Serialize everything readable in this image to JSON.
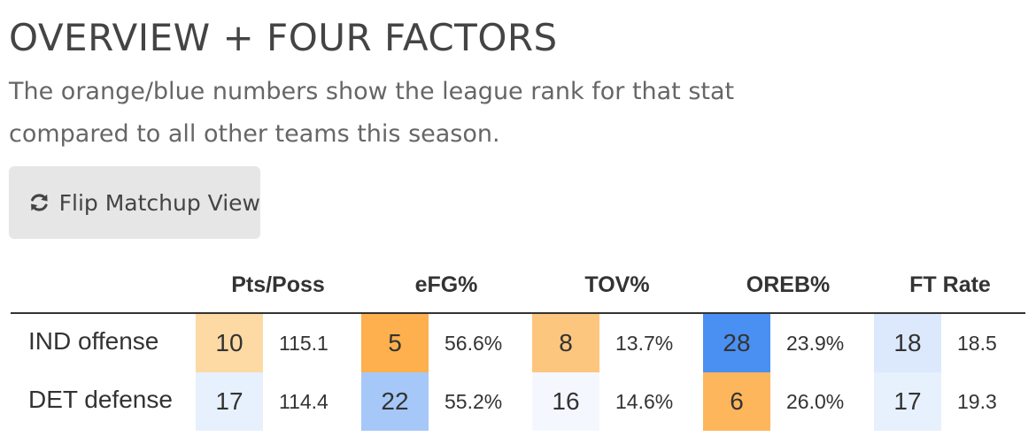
{
  "header": {
    "title": "OVERVIEW + FOUR FACTORS",
    "subtitle": "The orange/blue numbers show the league rank for that stat compared to all other teams this season."
  },
  "flip_button": {
    "label": "Flip Matchup View",
    "icon": "refresh-icon"
  },
  "table": {
    "columns": [
      "Pts/Poss",
      "eFG%",
      "TOV%",
      "OREB%",
      "FT Rate"
    ],
    "rows": [
      {
        "label": "IND offense",
        "cells": [
          {
            "rank": "10",
            "value": "115.1",
            "color": "#fdd9a4"
          },
          {
            "rank": "5",
            "value": "56.6%",
            "color": "#fdb04d"
          },
          {
            "rank": "8",
            "value": "13.7%",
            "color": "#fdc67e"
          },
          {
            "rank": "28",
            "value": "23.9%",
            "color": "#4a90f2"
          },
          {
            "rank": "18",
            "value": "18.5",
            "color": "#dce9fd"
          }
        ]
      },
      {
        "label": "DET defense",
        "cells": [
          {
            "rank": "17",
            "value": "114.4",
            "color": "#e7f0fd"
          },
          {
            "rank": "22",
            "value": "55.2%",
            "color": "#a6c8f8"
          },
          {
            "rank": "16",
            "value": "14.6%",
            "color": "#f4f8fe"
          },
          {
            "rank": "6",
            "value": "26.0%",
            "color": "#fdb65b"
          },
          {
            "rank": "17",
            "value": "19.3",
            "color": "#e7f0fd"
          }
        ]
      }
    ]
  }
}
